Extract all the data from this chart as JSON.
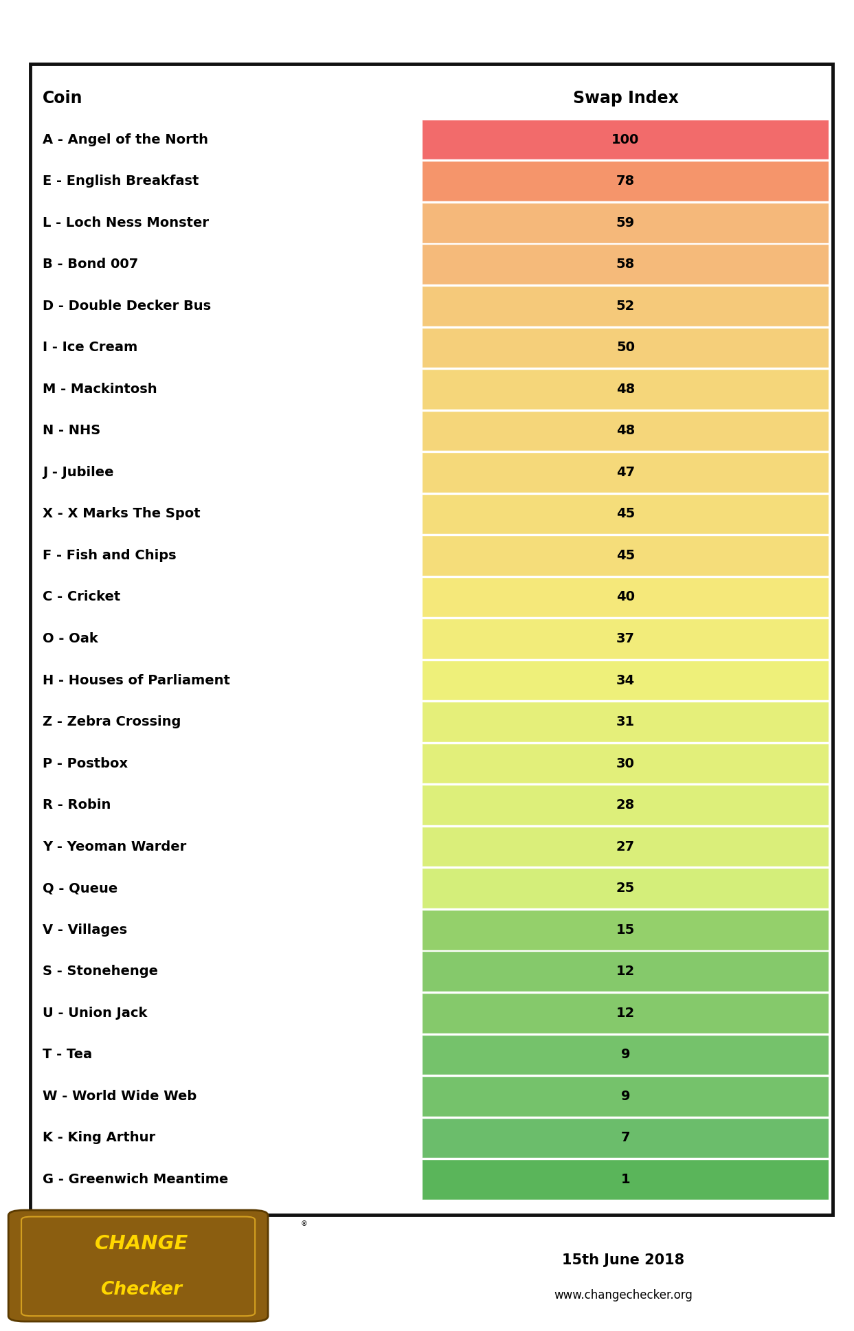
{
  "header_coin": "Coin",
  "header_index": "Swap Index",
  "date": "15th June 2018",
  "website": "www.changechecker.org",
  "coins": [
    {
      "label": "A - Angel of the North",
      "value": 100
    },
    {
      "label": "E - English Breakfast",
      "value": 78
    },
    {
      "label": "L - Loch Ness Monster",
      "value": 59
    },
    {
      "label": "B - Bond 007",
      "value": 58
    },
    {
      "label": "D - Double Decker Bus",
      "value": 52
    },
    {
      "label": "I - Ice Cream",
      "value": 50
    },
    {
      "label": "M - Mackintosh",
      "value": 48
    },
    {
      "label": "N - NHS",
      "value": 48
    },
    {
      "label": "J - Jubilee",
      "value": 47
    },
    {
      "label": "X - X Marks The Spot",
      "value": 45
    },
    {
      "label": "F - Fish and Chips",
      "value": 45
    },
    {
      "label": "C - Cricket",
      "value": 40
    },
    {
      "label": "O - Oak",
      "value": 37
    },
    {
      "label": "H - Houses of Parliament",
      "value": 34
    },
    {
      "label": "Z - Zebra Crossing",
      "value": 31
    },
    {
      "label": "P - Postbox",
      "value": 30
    },
    {
      "label": "R - Robin",
      "value": 28
    },
    {
      "label": "Y - Yeoman Warder",
      "value": 27
    },
    {
      "label": "Q - Queue",
      "value": 25
    },
    {
      "label": "V - Villages",
      "value": 15
    },
    {
      "label": "S - Stonehenge",
      "value": 12
    },
    {
      "label": "U - Union Jack",
      "value": 12
    },
    {
      "label": "T - Tea",
      "value": 9
    },
    {
      "label": "W - World Wide Web",
      "value": 9
    },
    {
      "label": "K - King Arthur",
      "value": 7
    },
    {
      "label": "G - Greenwich Meantime",
      "value": 1
    }
  ],
  "bg_color": "#ffffff",
  "label_fontsize": 14,
  "value_fontsize": 14,
  "header_fontsize": 17,
  "color_stops": [
    [
      100,
      "#F26B6B"
    ],
    [
      78,
      "#F5956B"
    ],
    [
      59,
      "#F5B87A"
    ],
    [
      52,
      "#F5C97A"
    ],
    [
      47,
      "#F5D97A"
    ],
    [
      40,
      "#F5E87A"
    ],
    [
      34,
      "#EEF07A"
    ],
    [
      25,
      "#D4EE7A"
    ],
    [
      19,
      "#A8D96B"
    ],
    [
      12,
      "#85C96B"
    ],
    [
      7,
      "#6BBD6B"
    ],
    [
      1,
      "#5AB55A"
    ]
  ]
}
